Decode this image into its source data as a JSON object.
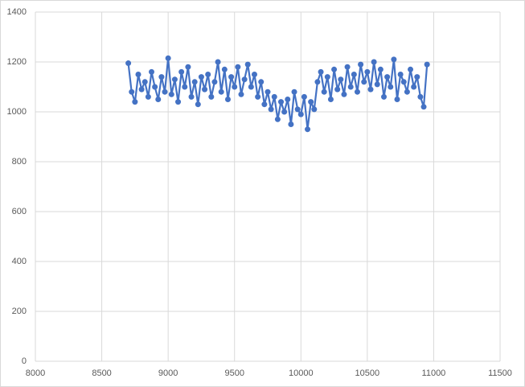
{
  "chart_data": {
    "type": "scatter",
    "xlim": [
      8000,
      11500
    ],
    "xticks": [
      8000,
      8500,
      9000,
      9500,
      10000,
      10500,
      11000,
      11500
    ],
    "ylim": [
      0,
      1400
    ],
    "yticks": [
      0,
      200,
      400,
      600,
      800,
      1000,
      1200,
      1400
    ],
    "grid": true,
    "series": [
      {
        "color": "#4472c4",
        "x": [
          8700,
          8725,
          8750,
          8775,
          8800,
          8825,
          8850,
          8875,
          8900,
          8925,
          8950,
          8975,
          9000,
          9025,
          9050,
          9075,
          9100,
          9125,
          9150,
          9175,
          9200,
          9225,
          9250,
          9275,
          9300,
          9325,
          9350,
          9375,
          9400,
          9425,
          9450,
          9475,
          9500,
          9525,
          9550,
          9575,
          9600,
          9625,
          9650,
          9675,
          9700,
          9725,
          9750,
          9775,
          9800,
          9825,
          9850,
          9875,
          9900,
          9925,
          9950,
          9975,
          10000,
          10025,
          10050,
          10075,
          10100,
          10125,
          10150,
          10175,
          10200,
          10225,
          10250,
          10275,
          10300,
          10325,
          10350,
          10375,
          10400,
          10425,
          10450,
          10475,
          10500,
          10525,
          10550,
          10575,
          10600,
          10625,
          10650,
          10675,
          10700,
          10725,
          10750,
          10775,
          10800,
          10825,
          10850,
          10875,
          10900,
          10925,
          10950
        ],
        "values": [
          1195,
          1080,
          1040,
          1150,
          1090,
          1120,
          1060,
          1160,
          1100,
          1050,
          1140,
          1080,
          1215,
          1070,
          1130,
          1040,
          1160,
          1100,
          1180,
          1060,
          1120,
          1030,
          1140,
          1090,
          1150,
          1060,
          1120,
          1200,
          1080,
          1170,
          1050,
          1140,
          1100,
          1180,
          1070,
          1130,
          1190,
          1100,
          1150,
          1060,
          1120,
          1030,
          1080,
          1010,
          1060,
          970,
          1040,
          1000,
          1050,
          950,
          1080,
          1010,
          990,
          1060,
          930,
          1040,
          1010,
          1120,
          1160,
          1080,
          1140,
          1050,
          1170,
          1090,
          1130,
          1070,
          1180,
          1100,
          1150,
          1080,
          1190,
          1120,
          1160,
          1090,
          1200,
          1110,
          1170,
          1060,
          1140,
          1100,
          1210,
          1050,
          1150,
          1120,
          1080,
          1170,
          1100,
          1140,
          1060,
          1020,
          1190
        ]
      }
    ]
  }
}
